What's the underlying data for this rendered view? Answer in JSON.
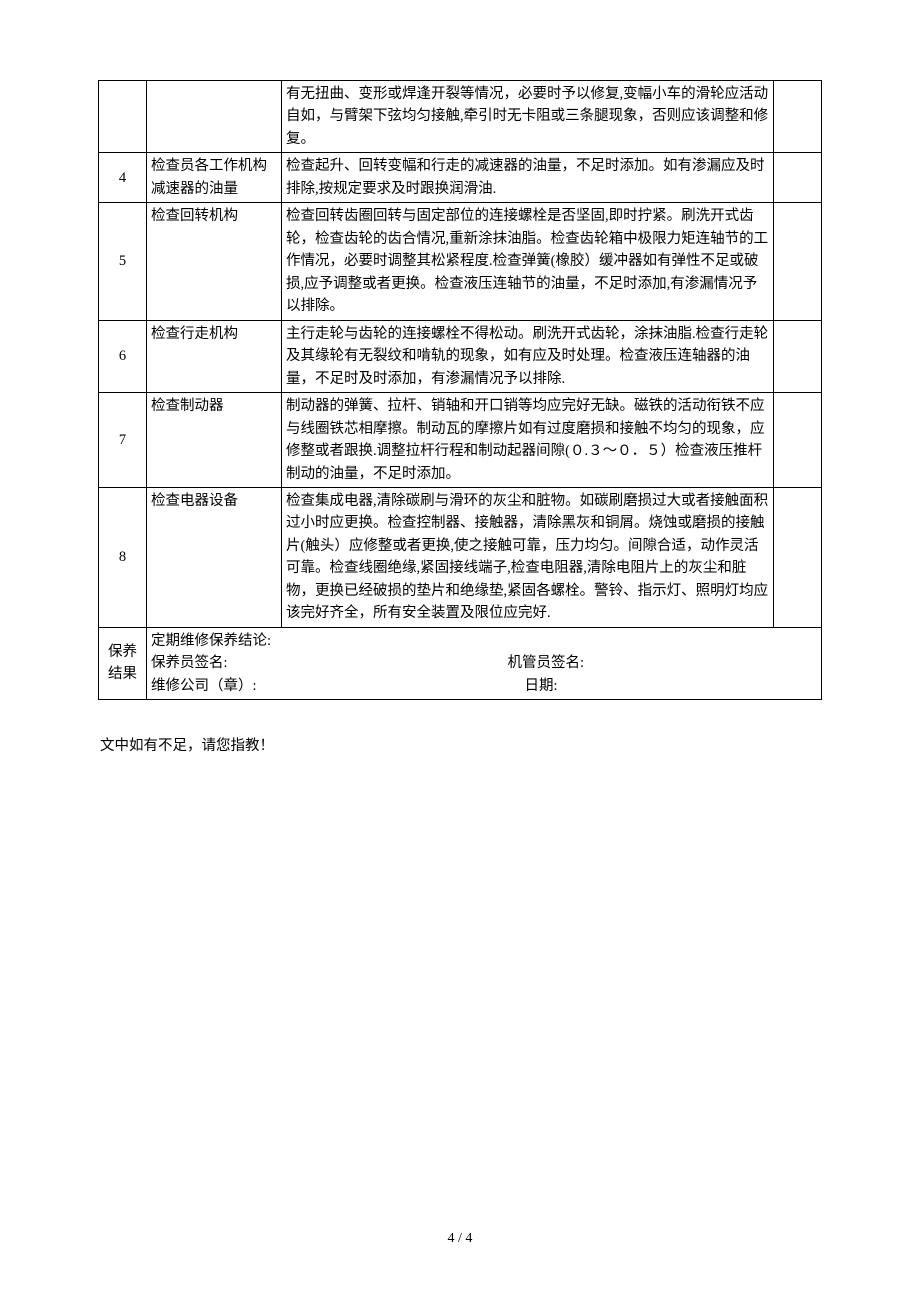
{
  "rows": [
    {
      "num": "",
      "item": "",
      "desc": "有无扭曲、变形或焊逢开裂等情况，必要时予以修复,变幅小车的滑轮应活动自如，与臂架下弦均匀接触,牵引时无卡阻或三条腿现象，否则应该调整和修复。"
    },
    {
      "num": "4",
      "item": "检查员各工作机构减速器的油量",
      "desc": "检查起升、回转变幅和行走的减速器的油量，不足时添加。如有渗漏应及时排除,按规定要求及时跟换润滑油."
    },
    {
      "num": "5",
      "item": "检查回转机构",
      "desc": "检查回转齿圈回转与固定部位的连接螺栓是否坚固,即时拧紧。刷洗开式齿轮，检查齿轮的齿合情况,重新涂抹油脂。检查齿轮箱中极限力矩连轴节的工作情况，必要时调整其松紧程度.检查弹簧(橡胶）缓冲器如有弹性不足或破损,应予调整或者更换。检查液压连轴节的油量，不足时添加,有渗漏情况予以排除。"
    },
    {
      "num": "6",
      "item": "检查行走机构",
      "desc": "主行走轮与齿轮的连接螺栓不得松动。刷洗开式齿轮，涂抹油脂.检查行走轮及其缘轮有无裂纹和啃轨的现象，如有应及时处理。检查液压连轴器的油量，不足时及时添加，有渗漏情况予以排除."
    },
    {
      "num": "7",
      "item": "检查制动器",
      "desc": "制动器的弹簧、拉杆、销轴和开口销等均应完好无缺。磁铁的活动衔铁不应与线圈铁芯相摩擦。制动瓦的摩擦片如有过度磨损和接触不均匀的现象，应修整或者跟换.调整拉杆行程和制动起器间隙(０.３～０．５）检查液压推杆制动的油量，不足时添加。"
    },
    {
      "num": "8",
      "item": "检查电器设备",
      "desc": "检查集成电器,清除碳刷与滑环的灰尘和脏物。如碳刷磨损过大或者接触面积过小时应更换。检查控制器、接触器，清除黑灰和铜屑。烧蚀或磨损的接触片(触头）应修整或者更换,使之接触可靠，压力均匀。间隙合适，动作灵活可靠。检查线圈绝缘,紧固接线端子,检查电阻器,清除电阻片上的灰尘和脏物，更换已经破损的垫片和绝缘垫,紧固各螺栓。警铃、指示灯、照明灯均应该完好齐全，所有安全装置及限位应完好."
    }
  ],
  "footer": {
    "label_line1": "保养",
    "label_line2": "结果",
    "conclusion": "定期维修保养结论:",
    "maintainer_sig": "保养员签名:",
    "manager_sig": "机管员签名:",
    "company_seal": "维修公司（章）:",
    "date": "日期:"
  },
  "footnote": "文中如有不足，请您指教！",
  "page_number": "4 / 4"
}
